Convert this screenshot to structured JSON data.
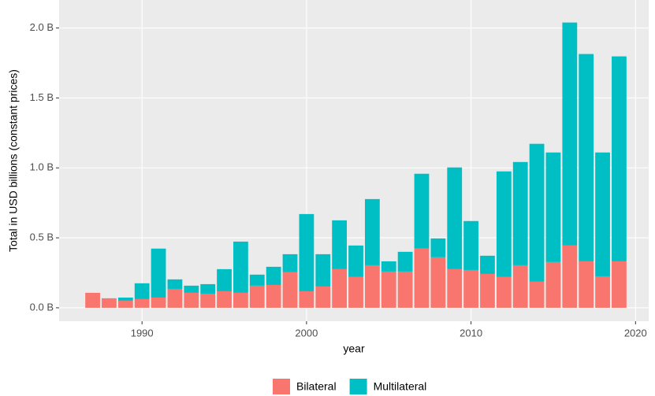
{
  "chart_data": {
    "type": "bar",
    "stacked": true,
    "x_label": "year",
    "y_label": "Total in USD billions (constant prices)",
    "x": [
      1987,
      1988,
      1989,
      1990,
      1991,
      1992,
      1993,
      1994,
      1995,
      1996,
      1997,
      1998,
      1999,
      2000,
      2001,
      2002,
      2003,
      2004,
      2005,
      2006,
      2007,
      2008,
      2009,
      2010,
      2011,
      2012,
      2013,
      2014,
      2015,
      2016,
      2017,
      2018,
      2019
    ],
    "series": [
      {
        "name": "Bilateral",
        "color": "#f8766d",
        "values": [
          0.107,
          0.068,
          0.05,
          0.062,
          0.073,
          0.135,
          0.107,
          0.101,
          0.118,
          0.107,
          0.158,
          0.163,
          0.254,
          0.118,
          0.152,
          0.276,
          0.22,
          0.304,
          0.259,
          0.259,
          0.423,
          0.361,
          0.276,
          0.27,
          0.242,
          0.22,
          0.304,
          0.186,
          0.327,
          0.445,
          0.332,
          0.225,
          0.332
        ]
      },
      {
        "name": "Multilateral",
        "color": "#00bfc4",
        "values": [
          0,
          0,
          0.023,
          0.113,
          0.35,
          0.068,
          0.051,
          0.068,
          0.158,
          0.366,
          0.079,
          0.13,
          0.129,
          0.552,
          0.231,
          0.349,
          0.225,
          0.473,
          0.073,
          0.141,
          0.535,
          0.135,
          0.727,
          0.35,
          0.13,
          0.755,
          0.738,
          0.986,
          0.783,
          1.594,
          1.482,
          0.885,
          1.465
        ]
      }
    ],
    "xlim": [
      1984.96,
      2020.8
    ],
    "xticks": [
      1990,
      2000,
      2010,
      2020
    ],
    "ylim": [
      -0.096,
      2.2
    ],
    "yticks": [
      {
        "value": 0,
        "label": "0.0 B"
      },
      {
        "value": 0.5,
        "label": "0.5 B"
      },
      {
        "value": 1,
        "label": "1.0 B"
      },
      {
        "value": 1.5,
        "label": "1.5 B"
      },
      {
        "value": 2,
        "label": "2.0 B"
      }
    ],
    "grid": true,
    "legend_position": "bottom"
  }
}
